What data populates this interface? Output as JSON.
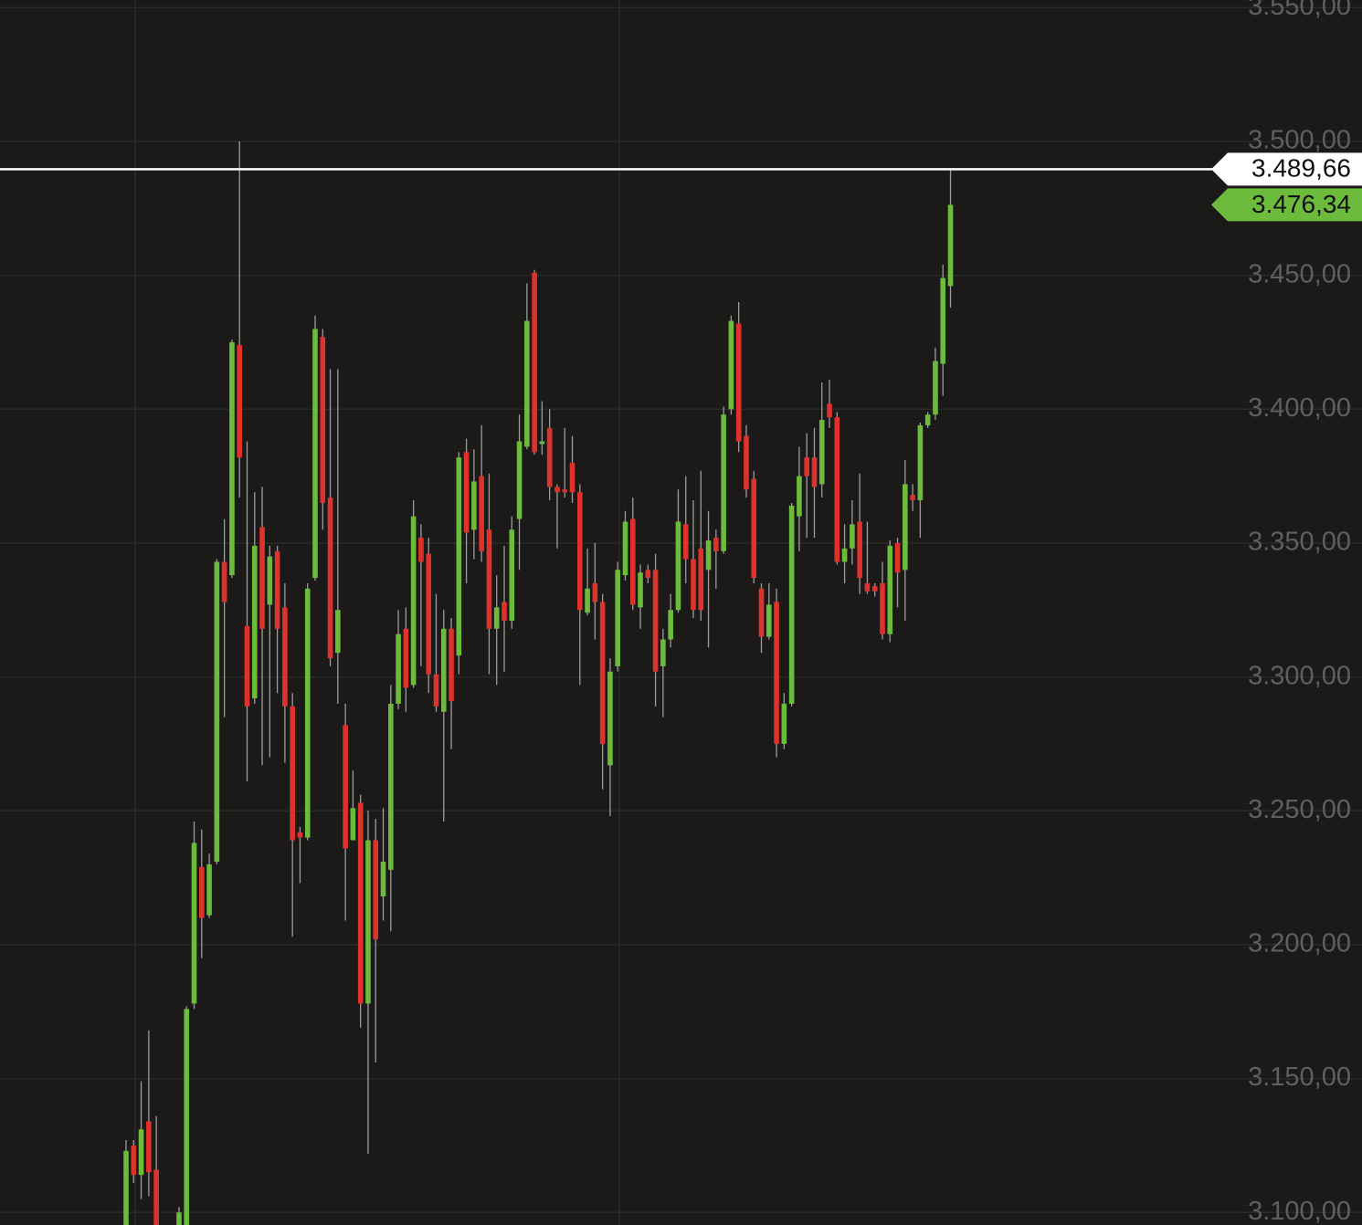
{
  "chart_data": {
    "type": "candlestick",
    "categories": [
      null,
      null,
      null,
      null,
      null,
      null,
      null,
      null,
      null,
      null,
      null,
      null,
      null,
      null,
      null,
      null,
      null,
      null,
      null,
      null,
      null,
      null,
      null,
      null,
      null,
      null,
      null,
      null,
      null,
      null,
      null,
      null,
      null,
      null,
      null,
      null,
      null,
      null,
      null,
      null,
      null,
      null,
      null,
      null,
      null,
      null,
      null,
      null,
      null,
      null,
      null,
      null,
      null,
      null,
      null,
      null,
      null,
      null,
      null,
      null,
      null,
      null,
      null,
      null,
      null,
      null,
      null,
      null,
      null,
      null,
      null,
      null,
      null,
      null,
      null,
      null,
      null,
      null,
      null,
      null,
      null,
      null,
      null,
      null,
      null,
      null,
      null,
      null,
      null,
      null,
      null,
      null,
      null,
      null,
      null,
      null,
      null,
      null,
      null,
      null,
      null,
      null,
      null,
      null,
      null,
      null,
      null,
      null,
      null,
      null
    ],
    "open": [
      3088,
      3125,
      3114,
      3134,
      3116,
      3085,
      3075,
      3080,
      3090,
      3178,
      3229,
      3211,
      3231,
      3343,
      3338,
      3424,
      3319,
      3292,
      3356,
      3327,
      3347,
      3326,
      3289,
      3242,
      3240,
      3337,
      3427,
      3367,
      3309,
      3282,
      3239,
      3253,
      3178,
      3239,
      3218,
      3228,
      3290,
      3318,
      3297,
      3352,
      3346,
      3301,
      3287,
      3318,
      3308,
      3384,
      3355,
      3375,
      3355,
      3318,
      3328,
      3321,
      3359,
      3386,
      3451,
      3387,
      3393,
      3371,
      3370,
      3380,
      3369,
      3324,
      3335,
      3328,
      3267,
      3304,
      3338,
      3359,
      3326,
      3340,
      3340,
      3304,
      3314,
      3325,
      3357,
      3344,
      3348,
      3340,
      3352,
      3347,
      3400,
      3432,
      3390,
      3374,
      3333,
      3315,
      3328,
      3275,
      3290,
      3360,
      3382,
      3382,
      3372,
      3402,
      3397,
      3343,
      3348,
      3358,
      3335,
      3334,
      3335,
      3316,
      3350,
      3340,
      3368,
      3366,
      3394,
      3398,
      3417,
      3446
    ],
    "high": [
      3127,
      3127,
      3149,
      3168,
      3136,
      3092,
      3088,
      3102,
      3177,
      3246,
      3243,
      3234,
      3344,
      3359,
      3426,
      3500,
      3388,
      3369,
      3371,
      3349,
      3349,
      3335,
      3294,
      3244,
      3335,
      3435,
      3430,
      3415,
      3415,
      3290,
      3265,
      3256,
      3250,
      3247,
      3251,
      3297,
      3325,
      3326,
      3366,
      3357,
      3352,
      3331,
      3325,
      3322,
      3384,
      3389,
      3385,
      3394,
      3376,
      3338,
      3349,
      3360,
      3398,
      3447,
      3452,
      3403,
      3400,
      3372,
      3393,
      3390,
      3372,
      3348,
      3350,
      3331,
      3307,
      3343,
      3362,
      3367,
      3342,
      3342,
      3346,
      3318,
      3331,
      3370,
      3375,
      3366,
      3377,
      3362,
      3355,
      3401,
      3435,
      3440,
      3394,
      3377,
      3335,
      3335,
      3333,
      3294,
      3365,
      3386,
      3391,
      3393,
      3410,
      3411,
      3399,
      3357,
      3366,
      3376,
      3358,
      3335,
      3343,
      3351,
      3352,
      3381,
      3372,
      3395,
      3399,
      3423,
      3454,
      3489.66
    ],
    "low": [
      3085,
      3111,
      3105,
      3106,
      3079,
      3070,
      3065,
      3075,
      3085,
      3176,
      3195,
      3210,
      3230,
      3285,
      3337,
      3367,
      3261,
      3290,
      3267,
      3270,
      3294,
      3268,
      3203,
      3223,
      3239,
      3336,
      3355,
      3304,
      3290,
      3209,
      3239,
      3169,
      3122,
      3156,
      3209,
      3205,
      3288,
      3287,
      3296,
      3304,
      3294,
      3287,
      3246,
      3273,
      3301,
      3335,
      3344,
      3343,
      3301,
      3297,
      3302,
      3318,
      3340,
      3385,
      3383,
      3383,
      3366,
      3348,
      3367,
      3365,
      3297,
      3323,
      3314,
      3258,
      3248,
      3302,
      3336,
      3325,
      3318,
      3335,
      3289,
      3285,
      3311,
      3324,
      3335,
      3322,
      3321,
      3311,
      3333,
      3346,
      3398,
      3384,
      3367,
      3335,
      3309,
      3314,
      3270,
      3273,
      3289,
      3347,
      3352,
      3352,
      3367,
      3393,
      3342,
      3335,
      3342,
      3331,
      3331,
      3330,
      3314,
      3313,
      3326,
      3321,
      3362,
      3352,
      3393,
      3396,
      3405,
      3438
    ],
    "close": [
      3123,
      3114,
      3131,
      3115,
      3082,
      3075,
      3080,
      3100,
      3176,
      3238,
      3210,
      3230,
      3343,
      3328,
      3425,
      3382,
      3289,
      3349,
      3318,
      3345,
      3318,
      3289,
      3239,
      3240,
      3333,
      3430,
      3365,
      3307,
      3325,
      3236,
      3251,
      3178,
      3239,
      3202,
      3231,
      3290,
      3316,
      3296,
      3360,
      3343,
      3301,
      3289,
      3318,
      3291,
      3382,
      3354,
      3373,
      3347,
      3318,
      3326,
      3321,
      3355,
      3388,
      3433,
      3384,
      3388,
      3371,
      3369,
      3369,
      3369,
      3325,
      3333,
      3328,
      3275,
      3302,
      3340,
      3358,
      3327,
      3339,
      3337,
      3302,
      3314,
      3325,
      3358,
      3344,
      3325,
      3325,
      3351,
      3347,
      3398,
      3433,
      3388,
      3370,
      3337,
      3315,
      3327,
      3275,
      3290,
      3364,
      3375,
      3375,
      3371,
      3396,
      3397,
      3343,
      3348,
      3357,
      3337,
      3332,
      3332,
      3316,
      3349,
      3339,
      3372,
      3366,
      3394,
      3398,
      3418,
      3449,
      3476.34
    ],
    "up_color": "#6dbb3c",
    "down_color": "#e0322c",
    "wick_color": "#9c9c9c",
    "ylim": [
      3095.3,
      3552.85
    ],
    "yticks": [
      {
        "value": 3100,
        "label": "3.100,00"
      },
      {
        "value": 3150,
        "label": "3.150,00"
      },
      {
        "value": 3200,
        "label": "3.200,00"
      },
      {
        "value": 3250,
        "label": "3.250,00"
      },
      {
        "value": 3300,
        "label": "3.300,00"
      },
      {
        "value": 3350,
        "label": "3.350,00"
      },
      {
        "value": 3400,
        "label": "3.400,00"
      },
      {
        "value": 3450,
        "label": "3.450,00"
      },
      {
        "value": 3500,
        "label": "3.500,00"
      },
      {
        "value": 3550,
        "label": "3.550,00"
      }
    ],
    "grid": true,
    "annotations": [
      {
        "value": 3489.66,
        "label": "3.489,66",
        "color": "#ffffff",
        "text_color": "#111111",
        "line": true
      },
      {
        "value": 3476.34,
        "label": "3.476,34",
        "color": "#6dbb3c",
        "text_color": "#111111",
        "line": false
      }
    ]
  }
}
